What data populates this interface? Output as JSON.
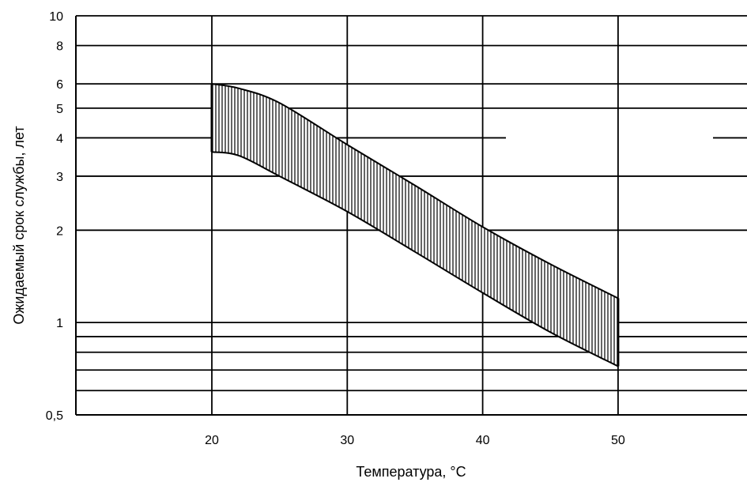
{
  "chart_data": {
    "type": "area",
    "xlabel": "Температура, °C",
    "ylabel": "Ожидаемый срок службы, лет",
    "xlim": [
      10,
      60
    ],
    "ylim": [
      0.5,
      10
    ],
    "yscale": "log",
    "x_ticks": [
      20,
      30,
      40,
      50
    ],
    "x_tick_labels": [
      "20",
      "30",
      "40",
      "50"
    ],
    "y_ticks": [
      0.5,
      1,
      2,
      3,
      4,
      5,
      6,
      8,
      10
    ],
    "y_tick_labels": [
      "0,5",
      "1",
      "2",
      "3",
      "4",
      "5",
      "6",
      "8",
      "10"
    ],
    "y_gridlines": [
      0.6,
      0.7,
      0.8,
      0.9,
      1,
      2,
      3,
      4,
      5,
      6,
      8,
      10
    ],
    "grid": true,
    "series": [
      {
        "values_upper": [
          {
            "x": 20,
            "y": 6.0
          },
          {
            "x": 22,
            "y": 5.8
          },
          {
            "x": 25,
            "y": 5.2
          },
          {
            "x": 30,
            "y": 3.8
          },
          {
            "x": 35,
            "y": 2.8
          },
          {
            "x": 40,
            "y": 2.05
          },
          {
            "x": 45,
            "y": 1.55
          },
          {
            "x": 50,
            "y": 1.2
          }
        ],
        "values_lower": [
          {
            "x": 20,
            "y": 3.6
          },
          {
            "x": 22,
            "y": 3.5
          },
          {
            "x": 25,
            "y": 3.0
          },
          {
            "x": 30,
            "y": 2.3
          },
          {
            "x": 35,
            "y": 1.7
          },
          {
            "x": 40,
            "y": 1.25
          },
          {
            "x": 45,
            "y": 0.93
          },
          {
            "x": 50,
            "y": 0.72
          }
        ],
        "fill_pattern": "vertical-hatch",
        "color": "#000000"
      }
    ]
  }
}
